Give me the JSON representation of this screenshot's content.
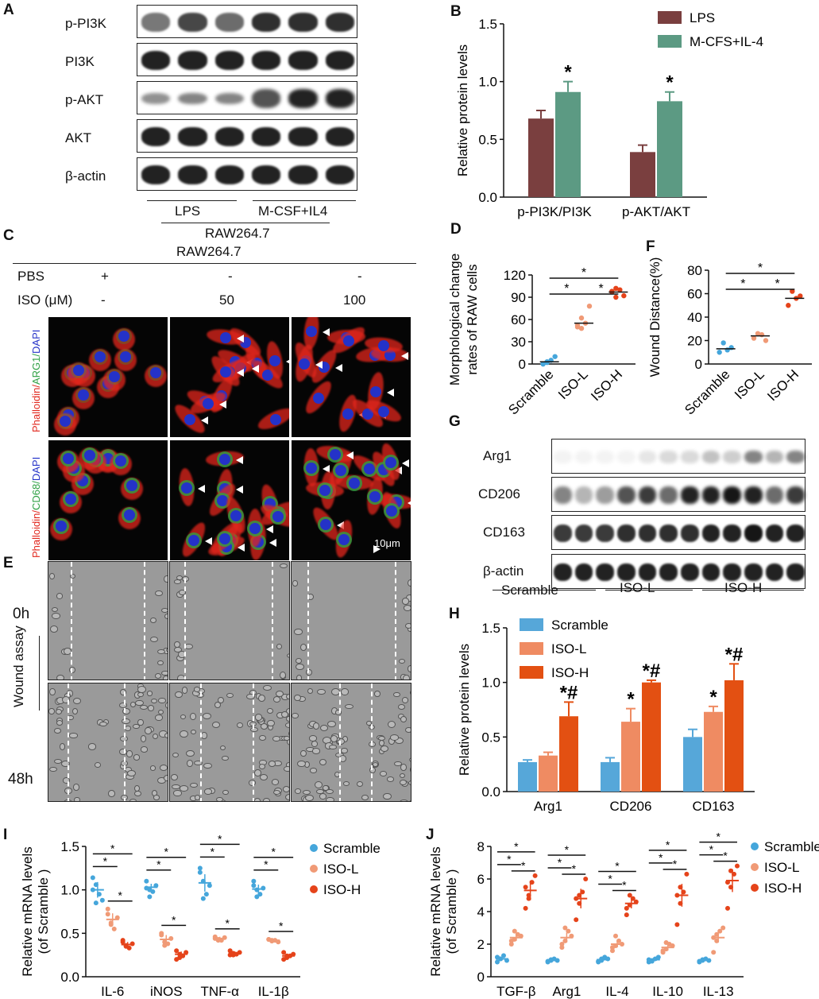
{
  "panel_letters": {
    "a": "A",
    "b": "B",
    "c": "C",
    "d": "D",
    "e": "E",
    "f": "F",
    "g": "G",
    "h": "H",
    "i": "I",
    "j": "J"
  },
  "panelA": {
    "rows": [
      "p-PI3K",
      "PI3K",
      "p-AKT",
      "AKT",
      "β-actin"
    ],
    "group_labels": [
      "LPS",
      "M-CSF+IL4"
    ],
    "cell_line": "RAW264.7"
  },
  "panelC": {
    "cell_line": "RAW264.7",
    "row_labels": [
      "PBS",
      "ISO (μM)"
    ],
    "pbs_values": [
      "+",
      "-",
      "-"
    ],
    "iso_values": [
      "-",
      "50",
      "100"
    ],
    "stain1_parts": [
      "Phalloidin/",
      "ARG1/",
      "DAPI"
    ],
    "stain2_parts": [
      "Phalloidin/",
      "CD68/",
      "DAPI"
    ],
    "scale_bar": "10μm"
  },
  "panelE": {
    "time_labels": [
      "0h",
      "48h"
    ],
    "assay_label": "Wound assay"
  },
  "panelG": {
    "rows": [
      "Arg1",
      "CD206",
      "CD163",
      "β-actin"
    ],
    "group_labels": [
      "Scramble",
      "ISO-L",
      "ISO-H"
    ]
  },
  "colors": {
    "lps": "#7a3f3f",
    "mcsf": "#5c9a83",
    "scramble": "#56a7d9",
    "isol": "#ef8b62",
    "isoh": "#e35012",
    "dotScramble": "#45a6db",
    "dotIsoL": "#f09a76",
    "dotIsoH": "#e5431a",
    "red": "#e1261c",
    "green": "#2ea043",
    "blue": "#2432c8"
  },
  "chart_data": [
    {
      "id": "B",
      "type": "bar",
      "ylabel": "Relative  protein  levels",
      "categories": [
        "p-PI3K/PI3K",
        "p-AKT/AKT"
      ],
      "ylim": [
        0,
        1.5
      ],
      "yticks": [
        "0.0",
        "0.5",
        "1.0",
        "1.5"
      ],
      "legend_position": "top-right",
      "series": [
        {
          "name": "LPS",
          "values": [
            0.68,
            0.39
          ],
          "errors": [
            0.07,
            0.06
          ],
          "marks": [
            "",
            ""
          ]
        },
        {
          "name": "M-CFS+IL-4",
          "values": [
            0.91,
            0.83
          ],
          "errors": [
            0.09,
            0.08
          ],
          "marks": [
            "*",
            "*"
          ]
        }
      ]
    },
    {
      "id": "D",
      "type": "scatter",
      "ylabel_lines": [
        "Morphological change",
        "rates of RAW cells"
      ],
      "categories": [
        "Scramble",
        "ISO-L",
        "ISO-H"
      ],
      "ylim": [
        0,
        120
      ],
      "yticks": [
        "0",
        "30",
        "60",
        "90",
        "120"
      ],
      "points": [
        [
          0,
          2,
          5,
          10,
          0,
          3
        ],
        [
          52,
          48,
          55,
          78,
          50,
          62
        ],
        [
          97,
          90,
          100,
          92,
          98,
          102
        ]
      ],
      "means": [
        3,
        55,
        97
      ],
      "sig": [
        {
          "from": 0,
          "to": 1,
          "level": 1
        },
        {
          "from": 1,
          "to": 2,
          "level": 1
        },
        {
          "from": 0,
          "to": 2,
          "level": 2
        }
      ],
      "sig_label": "*"
    },
    {
      "id": "F",
      "type": "scatter",
      "ylabel": "Wound Distance(%)",
      "categories": [
        "Scramble",
        "ISO-L",
        "ISO-H"
      ],
      "ylim": [
        0,
        80
      ],
      "yticks": [
        "0",
        "20",
        "40",
        "60",
        "80"
      ],
      "points": [
        [
          10,
          18,
          12,
          14
        ],
        [
          22,
          26,
          25,
          20
        ],
        [
          50,
          62,
          56,
          58
        ]
      ],
      "means": [
        13,
        24,
        56
      ],
      "sig": [
        {
          "from": 0,
          "to": 1,
          "level": 1
        },
        {
          "from": 1,
          "to": 2,
          "level": 1
        },
        {
          "from": 0,
          "to": 2,
          "level": 2
        }
      ],
      "sig_label": "*"
    },
    {
      "id": "H",
      "type": "bar",
      "ylabel": "Relative  protein  levels",
      "categories": [
        "Arg1",
        "CD206",
        "CD163"
      ],
      "ylim": [
        0,
        1.5
      ],
      "yticks": [
        "0.0",
        "0.5",
        "1.0",
        "1.5"
      ],
      "legend_position": "top-left",
      "series": [
        {
          "name": "Scramble",
          "values": [
            0.27,
            0.27,
            0.5
          ],
          "errors": [
            0.02,
            0.04,
            0.07
          ],
          "marks": [
            "",
            "",
            ""
          ]
        },
        {
          "name": "ISO-L",
          "values": [
            0.33,
            0.64,
            0.73
          ],
          "errors": [
            0.03,
            0.12,
            0.05
          ],
          "marks": [
            "",
            "*",
            "*"
          ]
        },
        {
          "name": "ISO-H",
          "values": [
            0.69,
            1.0,
            1.02
          ],
          "errors": [
            0.13,
            0.02,
            0.15
          ],
          "marks": [
            "*#",
            "*#",
            "*#"
          ]
        }
      ]
    },
    {
      "id": "I",
      "type": "scatter",
      "ylabel_lines": [
        "Relative  mRNA  levels",
        "(of Scramble )"
      ],
      "categories": [
        "IL-6",
        "iNOS",
        "TNF-α",
        "IL-1β"
      ],
      "ylim": [
        0,
        1.5
      ],
      "yticks": [
        "0.0",
        "0.5",
        "1.0",
        "1.5"
      ],
      "legend_position": "top-right",
      "series_names": [
        "Scramble",
        "ISO-L",
        "ISO-H"
      ],
      "means": [
        [
          1.0,
          0.66,
          0.37
        ],
        [
          1.03,
          0.43,
          0.26
        ],
        [
          1.08,
          0.44,
          0.27
        ],
        [
          1.01,
          0.42,
          0.24
        ]
      ],
      "errors": [
        [
          0.09,
          0.07,
          0.03
        ],
        [
          0.04,
          0.05,
          0.03
        ],
        [
          0.1,
          0.02,
          0.02
        ],
        [
          0.05,
          0.01,
          0.02
        ]
      ],
      "points": [
        [
          [
            1.14,
            1.06,
            0.95,
            0.88,
            1.0,
            0.85
          ],
          [
            0.72,
            0.62,
            0.55,
            0.68,
            0.78,
            0.6
          ],
          [
            0.4,
            0.35,
            0.33,
            0.38,
            0.42,
            0.36
          ]
        ],
        [
          [
            1.1,
            1.0,
            0.98,
            1.05,
            1.02,
            0.92
          ],
          [
            0.5,
            0.4,
            0.38,
            0.44,
            0.48,
            0.36
          ],
          [
            0.3,
            0.22,
            0.24,
            0.28,
            0.2,
            0.26
          ]
        ],
        [
          [
            1.25,
            1.1,
            0.95,
            1.05,
            1.2,
            0.9
          ],
          [
            0.46,
            0.43,
            0.42,
            0.45,
            0.44,
            0.42
          ],
          [
            0.3,
            0.25,
            0.26,
            0.28,
            0.25,
            0.27
          ]
        ],
        [
          [
            1.1,
            1.0,
            0.95,
            1.02,
            1.05,
            0.92
          ],
          [
            0.43,
            0.41,
            0.42,
            0.4,
            0.43,
            0.42
          ],
          [
            0.28,
            0.22,
            0.24,
            0.26,
            0.2,
            0.24
          ]
        ]
      ],
      "sig_label": "*"
    },
    {
      "id": "J",
      "type": "scatter",
      "ylabel_lines": [
        "Relative  mRNA  levels",
        "(of Scramble )"
      ],
      "categories": [
        "TGF-β",
        "Arg1",
        "IL-4",
        "IL-10",
        "IL-13"
      ],
      "ylim": [
        0,
        8
      ],
      "yticks": [
        "0",
        "2",
        "4",
        "6",
        "8"
      ],
      "legend_position": "top-right",
      "series_names": [
        "Scramble",
        "ISO-L",
        "ISO-H"
      ],
      "means": [
        [
          1.1,
          2.4,
          5.3
        ],
        [
          1.0,
          2.4,
          4.8
        ],
        [
          1.05,
          2.0,
          4.5
        ],
        [
          1.05,
          1.8,
          5.0
        ],
        [
          1.0,
          2.4,
          5.9
        ]
      ],
      "errors": [
        [
          0.1,
          0.2,
          0.6
        ],
        [
          0.05,
          0.3,
          0.6
        ],
        [
          0.1,
          0.2,
          0.3
        ],
        [
          0.1,
          0.2,
          0.7
        ],
        [
          0.05,
          0.3,
          0.7
        ]
      ],
      "points": [
        [
          [
            0.9,
            1.1,
            1.3,
            1.0,
            1.2,
            1.1
          ],
          [
            2.0,
            2.3,
            2.6,
            2.5,
            2.2,
            2.8
          ],
          [
            4.2,
            5.0,
            5.8,
            6.2,
            5.5,
            4.8
          ]
        ],
        [
          [
            0.9,
            1.0,
            1.1,
            1.0,
            0.95,
            1.05
          ],
          [
            2.0,
            2.2,
            2.8,
            2.5,
            1.8,
            3.0
          ],
          [
            3.5,
            4.5,
            5.2,
            6.0,
            4.8,
            5.0
          ]
        ],
        [
          [
            0.9,
            1.0,
            1.2,
            1.1,
            0.95,
            1.1
          ],
          [
            1.6,
            1.9,
            2.2,
            2.0,
            1.8,
            2.5
          ],
          [
            3.8,
            4.4,
            4.8,
            4.6,
            4.2,
            5.0
          ]
        ],
        [
          [
            0.9,
            1.0,
            1.1,
            1.2,
            1.05,
            0.95
          ],
          [
            1.5,
            1.7,
            2.0,
            1.9,
            1.6,
            2.1
          ],
          [
            3.2,
            4.5,
            5.2,
            6.3,
            5.0,
            5.5
          ]
        ],
        [
          [
            0.9,
            1.0,
            1.1,
            1.0,
            0.95,
            1.05
          ],
          [
            1.5,
            2.2,
            2.8,
            3.0,
            2.4,
            2.6
          ],
          [
            4.2,
            5.5,
            6.3,
            6.8,
            5.8,
            6.5
          ]
        ]
      ],
      "sig_label": "*"
    }
  ]
}
